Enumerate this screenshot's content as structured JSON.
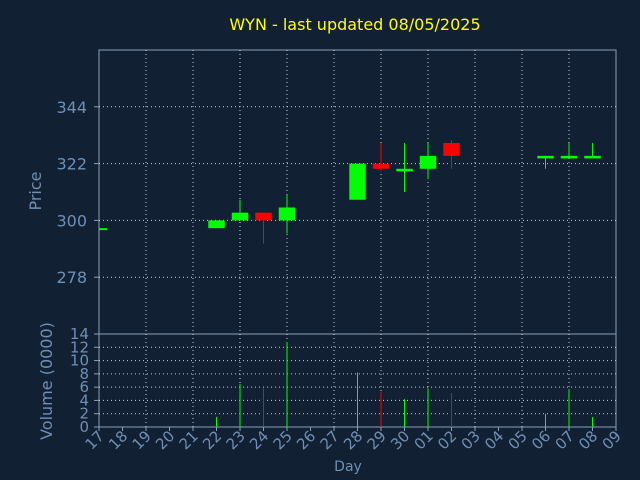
{
  "chart_data": [
    {
      "type": "candlestick",
      "title": "WYN - last updated 08/05/2025",
      "ylabel": "Price",
      "ylim": [
        256,
        366
      ],
      "yticks": [
        278,
        300,
        322,
        344
      ],
      "x_tick_labels": [
        "17",
        "18",
        "19",
        "20",
        "21",
        "22",
        "23",
        "24",
        "25",
        "26",
        "27",
        "28",
        "29",
        "30",
        "01",
        "02",
        "03",
        "04",
        "05",
        "06",
        "07",
        "08",
        "09"
      ],
      "grid": true,
      "up_color": "#00ff00",
      "down_color": "#ff0000",
      "candles": [
        {
          "x": "17",
          "open": 297,
          "high": 297,
          "low": 297,
          "close": 297
        },
        {
          "x": "22",
          "open": 297,
          "high": 300,
          "low": 297,
          "close": 300
        },
        {
          "x": "23",
          "open": 300,
          "high": 308,
          "low": 300,
          "close": 303
        },
        {
          "x": "24",
          "open": 303,
          "high": 303,
          "low": 291,
          "close": 300
        },
        {
          "x": "25",
          "open": 300,
          "high": 310,
          "low": 295,
          "close": 305
        },
        {
          "x": "28",
          "open": 308,
          "high": 322,
          "low": 308,
          "close": 322
        },
        {
          "x": "29",
          "open": 322,
          "high": 330,
          "low": 319,
          "close": 320
        },
        {
          "x": "30",
          "open": 319,
          "high": 330,
          "low": 311,
          "close": 320
        },
        {
          "x": "01",
          "open": 320,
          "high": 330,
          "low": 316,
          "close": 325
        },
        {
          "x": "02",
          "open": 330,
          "high": 331,
          "low": 320,
          "close": 325
        },
        {
          "x": "06",
          "open": 324,
          "high": 325,
          "low": 320,
          "close": 325
        },
        {
          "x": "07",
          "open": 324,
          "high": 330,
          "low": 324,
          "close": 325
        },
        {
          "x": "08",
          "open": 324,
          "high": 330,
          "low": 324,
          "close": 325
        }
      ]
    },
    {
      "type": "bar",
      "ylabel": "Volume (0000)",
      "xlabel": "Day",
      "ylim": [
        0,
        14
      ],
      "yticks": [
        0,
        2,
        4,
        6,
        8,
        10,
        12,
        14
      ],
      "x_tick_labels": [
        "17",
        "18",
        "19",
        "20",
        "21",
        "22",
        "23",
        "24",
        "25",
        "26",
        "27",
        "28",
        "29",
        "30",
        "01",
        "02",
        "03",
        "04",
        "05",
        "06",
        "07",
        "08",
        "09"
      ],
      "grid": true,
      "bars": [
        {
          "x": "17",
          "value": 0,
          "color": "#00ff00"
        },
        {
          "x": "22",
          "value": 1.5,
          "color": "#00ff00"
        },
        {
          "x": "23",
          "value": 6.5,
          "color": "#00ff00"
        },
        {
          "x": "24",
          "value": 5.8,
          "color": "#ff0000"
        },
        {
          "x": "25",
          "value": 12.8,
          "color": "#00ff00"
        },
        {
          "x": "28",
          "value": 8.2,
          "color": "#00ff00"
        },
        {
          "x": "29",
          "value": 5.3,
          "color": "#ff0000"
        },
        {
          "x": "30",
          "value": 4.2,
          "color": "#00ff00"
        },
        {
          "x": "01",
          "value": 5.8,
          "color": "#00ff00"
        },
        {
          "x": "02",
          "value": 5.1,
          "color": "#ff0000"
        },
        {
          "x": "06",
          "value": 2.0,
          "color": "#00ff00"
        },
        {
          "x": "07",
          "value": 5.7,
          "color": "#00ff00"
        },
        {
          "x": "08",
          "value": 1.5,
          "color": "#00ff00"
        }
      ]
    }
  ],
  "colors": {
    "background": "#112033",
    "axis": "#8aa0b8",
    "grid": "#c8d2dc",
    "text": "#6f8fb4",
    "title": "#ffff00"
  }
}
